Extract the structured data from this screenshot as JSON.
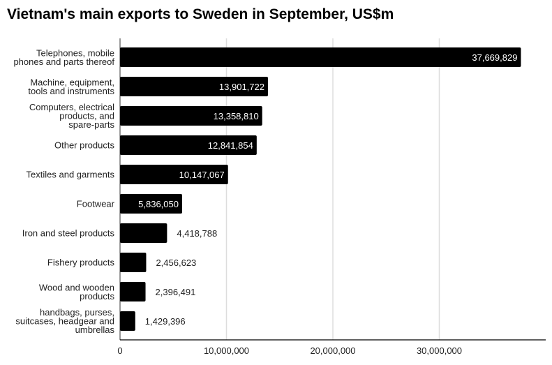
{
  "chart_data": {
    "type": "bar",
    "orientation": "horizontal",
    "title": "Vietnam's main exports to Sweden in September, US$m",
    "xlabel": "",
    "ylabel": "",
    "categories": [
      "Telephones, mobile phones and parts thereof",
      "Machine, equipment, tools and instruments",
      "Computers, electrical products, and spare-parts",
      "Other products",
      "Textiles and garments",
      "Footwear",
      "Iron and steel products",
      "Fishery products",
      "Wood and wooden products",
      "handbags, purses, suitcases, headgear and umbrellas"
    ],
    "category_lines": [
      [
        "Telephones, mobile",
        "phones and parts thereof"
      ],
      [
        "Machine, equipment,",
        "tools and instruments"
      ],
      [
        "Computers, electrical",
        "products, and",
        "spare-parts"
      ],
      [
        "Other products"
      ],
      [
        "Textiles and garments"
      ],
      [
        "Footwear"
      ],
      [
        "Iron and steel products"
      ],
      [
        "Fishery products"
      ],
      [
        "Wood and wooden",
        "products"
      ],
      [
        "handbags, purses,",
        "suitcases, headgear and",
        "umbrellas"
      ]
    ],
    "values": [
      37669829,
      13901722,
      13358810,
      12841854,
      10147067,
      5836050,
      4418788,
      2456623,
      2396491,
      1429396
    ],
    "data_labels": [
      "37,669,829",
      "13,901,722",
      "13,358,810",
      "12,841,854",
      "10,147,067",
      "5,836,050",
      "4,418,788",
      "2,456,623",
      "2,396,491",
      "1,429,396"
    ],
    "xlim": [
      0,
      40000000
    ],
    "xticks": [
      0,
      10000000,
      20000000,
      30000000
    ],
    "xtick_labels": [
      "0",
      "10,000,000",
      "20,000,000",
      "30,000,000"
    ],
    "grid": true,
    "bar_color": "#000000",
    "grid_color": "#dddddd"
  }
}
